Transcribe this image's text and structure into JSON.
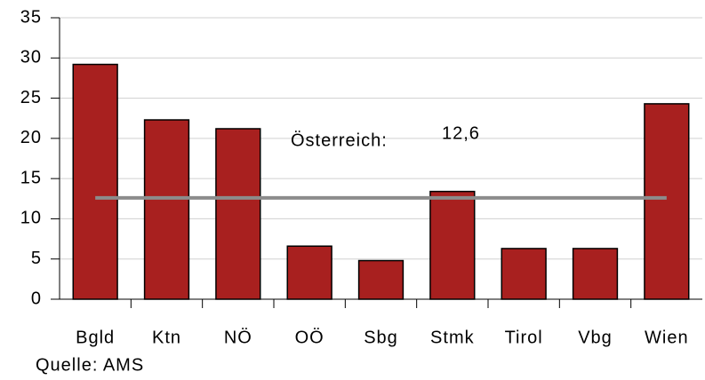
{
  "chart_data": {
    "type": "bar",
    "categories": [
      "Bgld",
      "Ktn",
      "NÖ",
      "OÖ",
      "Sbg",
      "Stmk",
      "Tirol",
      "Vbg",
      "Wien"
    ],
    "values": [
      29.2,
      22.3,
      21.2,
      6.6,
      4.8,
      13.4,
      6.3,
      6.3,
      24.3
    ],
    "color": "#a8201f",
    "ylim": [
      0,
      35
    ],
    "yticks": [
      0,
      5,
      10,
      15,
      20,
      25,
      30,
      35
    ],
    "grid": true,
    "reference_line": {
      "name": "Österreich:",
      "value": 12.6,
      "label": "12,6",
      "color": "#8c8c8c"
    },
    "source": "Quelle: AMS"
  }
}
